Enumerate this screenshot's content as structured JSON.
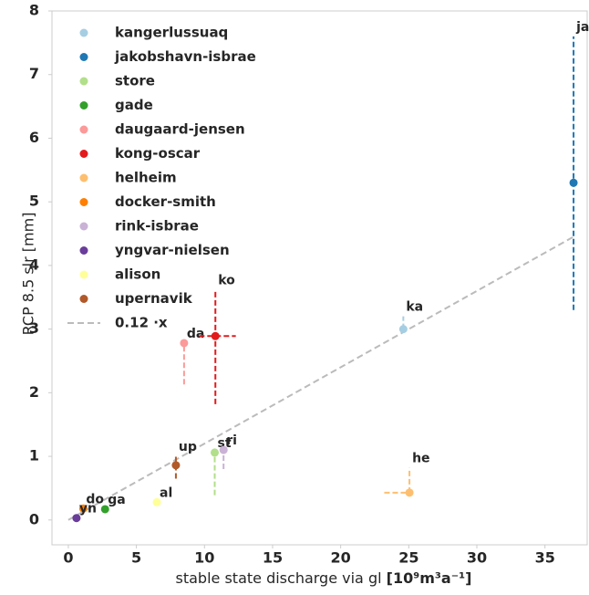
{
  "chart_data": {
    "type": "scatter",
    "xlabel": "stable state discharge via gl",
    "xlabel_unit": "[10⁹m³a⁻¹]",
    "ylabel": "RCP 8.5 slr [mm]",
    "xlim": [
      -1.2,
      38.1
    ],
    "ylim": [
      -0.39,
      8
    ],
    "xticks": [
      0,
      5,
      10,
      15,
      20,
      25,
      30,
      35
    ],
    "yticks": [
      0,
      1,
      2,
      3,
      4,
      5,
      6,
      7,
      8
    ],
    "legend": "upper left",
    "series": [
      {
        "name": "kangerlussuaq",
        "label": "ka",
        "color": "#a6cee3",
        "x": 24.6,
        "y": 3.0,
        "y_range": [
          3.0,
          3.2
        ]
      },
      {
        "name": "jakobshavn-isbrae",
        "label": "ja",
        "color": "#1f78b4",
        "x": 37.1,
        "y": 5.3,
        "y_range": [
          3.3,
          7.6
        ]
      },
      {
        "name": "store",
        "label": "st",
        "color": "#b2df8a",
        "x": 10.75,
        "y": 1.06,
        "y_range": [
          0.39,
          1.06
        ]
      },
      {
        "name": "gade",
        "label": "ga",
        "color": "#33a02c",
        "x": 2.7,
        "y": 0.17
      },
      {
        "name": "daugaard-jensen",
        "label": "da",
        "color": "#fb9a99",
        "x": 8.5,
        "y": 2.78,
        "y_range": [
          2.13,
          2.78
        ]
      },
      {
        "name": "kong-oscar",
        "label": "ko",
        "color": "#e31a1c",
        "x": 10.8,
        "y": 2.89,
        "y_range": [
          1.82,
          3.62
        ],
        "x_range": [
          9.6,
          12.3
        ]
      },
      {
        "name": "helheim",
        "label": "he",
        "color": "#fdbf6f",
        "x": 25.05,
        "y": 0.43,
        "y_range": [
          0.43,
          0.82
        ],
        "x_range": [
          23.2,
          25.05
        ]
      },
      {
        "name": "docker-smith",
        "label": "do",
        "color": "#ff7f00",
        "x": 1.1,
        "y": 0.18
      },
      {
        "name": "rink-isbrae",
        "label": "ri",
        "color": "#cab2d6",
        "x": 11.4,
        "y": 1.1,
        "y_range": [
          0.8,
          1.1
        ]
      },
      {
        "name": "yngvar-nielsen",
        "label": "yn",
        "color": "#6a3d9a",
        "x": 0.6,
        "y": 0.03
      },
      {
        "name": "alison",
        "label": "al",
        "color": "#ffff99",
        "x": 6.5,
        "y": 0.28
      },
      {
        "name": "upernavik",
        "label": "up",
        "color": "#b15928",
        "x": 7.9,
        "y": 0.86,
        "y_range": [
          0.65,
          1.0
        ]
      }
    ],
    "fit": {
      "name": "0.12 ·x",
      "slope": 0.12,
      "x": [
        0,
        37.1
      ],
      "color": "#bbbbbb"
    }
  }
}
